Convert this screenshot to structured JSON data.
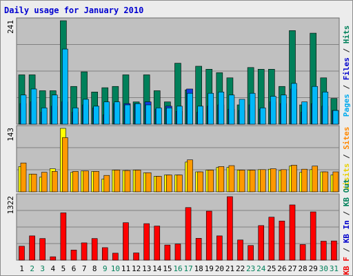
{
  "chart_data": {
    "type": "bar",
    "title": "Daily usage for January 2010",
    "categories": [
      "1",
      "2",
      "3",
      "4",
      "5",
      "6",
      "7",
      "8",
      "9",
      "10",
      "11",
      "12",
      "13",
      "14",
      "15",
      "16",
      "17",
      "18",
      "19",
      "20",
      "21",
      "22",
      "23",
      "24",
      "25",
      "26",
      "27",
      "28",
      "29",
      "30",
      "31"
    ],
    "weekend_days": [
      "2",
      "3",
      "9",
      "10",
      "16",
      "17",
      "23",
      "24",
      "30",
      "31"
    ],
    "panels": [
      {
        "id": "top",
        "axis_max_label": "241",
        "ylim": [
          0,
          241
        ],
        "right_labels": [
          {
            "text": "Pages",
            "color": "#00aaee"
          },
          {
            "text": " / ",
            "color": "#222222"
          },
          {
            "text": "Files",
            "color": "#0000cc"
          },
          {
            "text": " / ",
            "color": "#222222"
          },
          {
            "text": "Hits",
            "color": "#00805a"
          }
        ],
        "series": [
          {
            "name": "Hits",
            "color": "#00805a",
            "values": [
              115,
              115,
              78,
              78,
              241,
              88,
              122,
              75,
              85,
              88,
              115,
              52,
              115,
              78,
              52,
              142,
              80,
              135,
              128,
              120,
              108,
              45,
              132,
              128,
              128,
              88,
              218,
              45,
              212,
              108,
              60
            ]
          },
          {
            "name": "Files",
            "color": "#1040e0",
            "values": [
              48,
              52,
              28,
              42,
              52,
              28,
              45,
              38,
              22,
              48,
              48,
              48,
              52,
              35,
              42,
              30,
              82,
              28,
              42,
              45,
              35,
              32,
              45,
              35,
              52,
              48,
              82,
              28,
              48,
              42,
              32
            ]
          },
          {
            "name": "Pages",
            "color": "#00b8f8",
            "values": [
              68,
              82,
              38,
              68,
              175,
              38,
              58,
              42,
              52,
              52,
              45,
              48,
              45,
              38,
              38,
              42,
              72,
              42,
              72,
              75,
              68,
              58,
              72,
              38,
              65,
              68,
              95,
              52,
              88,
              75,
              32
            ]
          }
        ]
      },
      {
        "id": "middle",
        "axis_max_label": "143",
        "ylim": [
          0,
          143
        ],
        "right_labels": [
          {
            "text": "Visits",
            "color": "#e8d000"
          },
          {
            "text": " / ",
            "color": "#222222"
          },
          {
            "text": "Sites",
            "color": "#ff8800"
          }
        ],
        "series": [
          {
            "name": "Visits",
            "color": "#ffff00",
            "values": [
              57,
              40,
              33,
              52,
              143,
              44,
              47,
              46,
              29,
              49,
              48,
              49,
              43,
              35,
              38,
              38,
              67,
              45,
              49,
              55,
              55,
              49,
              49,
              50,
              51,
              48,
              58,
              44,
              50,
              45,
              38
            ]
          },
          {
            "name": "Sites",
            "color": "#ff9900",
            "values": [
              65,
              40,
              44,
              46,
              122,
              46,
              47,
              46,
              37,
              49,
              48,
              49,
              43,
              35,
              38,
              38,
              72,
              45,
              49,
              57,
              59,
              49,
              49,
              50,
              52,
              50,
              60,
              51,
              58,
              45,
              45
            ]
          }
        ]
      },
      {
        "id": "bottom",
        "axis_max_label": "1322",
        "ylim": [
          0,
          1322
        ],
        "right_labels": [
          {
            "text": "KB F",
            "color": "#ee0000"
          },
          {
            "text": " / ",
            "color": "#222222"
          },
          {
            "text": "KB In",
            "color": "#0000cc"
          },
          {
            "text": " / ",
            "color": "#222222"
          },
          {
            "text": "KB Out",
            "color": "#00805a"
          }
        ],
        "series": [
          {
            "name": "KB F",
            "color": "#ff0000",
            "values": [
              290,
              505,
              450,
              70,
              985,
              210,
              360,
              450,
              260,
              145,
              780,
              150,
              760,
              710,
              315,
              335,
              1095,
              455,
              1020,
              505,
              1322,
              420,
              305,
              720,
              895,
              815,
              1150,
              325,
              1005,
              395,
              400
            ]
          }
        ]
      }
    ]
  }
}
